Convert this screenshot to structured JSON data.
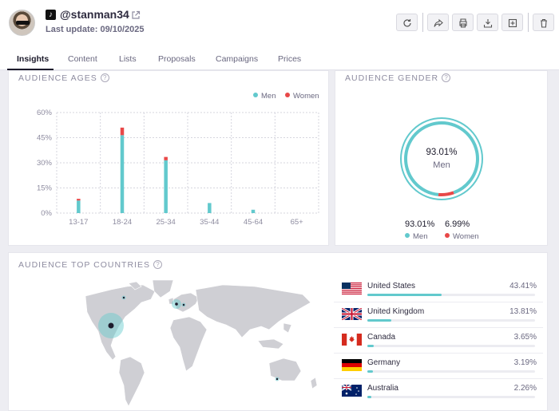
{
  "header": {
    "username": "@stanman34",
    "last_update": "Last update: 09/10/2025",
    "platform_icon": "tiktok-icon"
  },
  "toolbar": [
    "refresh-icon",
    "share-icon",
    "print-icon",
    "download-icon",
    "add-icon",
    "trash-icon"
  ],
  "tabs": [
    {
      "label": "Insights",
      "active": true
    },
    {
      "label": "Content"
    },
    {
      "label": "Lists"
    },
    {
      "label": "Proposals"
    },
    {
      "label": "Campaigns"
    },
    {
      "label": "Prices"
    }
  ],
  "ages": {
    "title": "AUDIENCE AGES",
    "help": "?",
    "legend_men": "Men",
    "legend_women": "Women",
    "men_color": "#62c9cd",
    "women_color": "#e84848"
  },
  "gender": {
    "title": "AUDIENCE GENDER",
    "help": "?",
    "center_value": "93.01%",
    "center_label": "Men",
    "men_value": "93.01%",
    "men_label": "Men",
    "women_value": "6.99%",
    "women_label": "Women"
  },
  "countries": {
    "title": "AUDIENCE TOP COUNTRIES",
    "help": "?",
    "items": [
      {
        "name": "United States",
        "pct": "43.41%",
        "fraction": 0.4341,
        "flag": "us-flag-icon"
      },
      {
        "name": "United Kingdom",
        "pct": "13.81%",
        "fraction": 0.1381,
        "flag": "uk-flag-icon"
      },
      {
        "name": "Canada",
        "pct": "3.65%",
        "fraction": 0.0365,
        "flag": "canada-flag-icon"
      },
      {
        "name": "Germany",
        "pct": "3.19%",
        "fraction": 0.0319,
        "flag": "germany-flag-icon"
      },
      {
        "name": "Australia",
        "pct": "2.26%",
        "fraction": 0.0226,
        "flag": "australia-flag-icon"
      }
    ]
  },
  "chart_data": [
    {
      "type": "bar",
      "stacked": true,
      "categories": [
        "13-17",
        "18-24",
        "25-34",
        "35-44",
        "45-64",
        "65+"
      ],
      "series": [
        {
          "name": "Men",
          "values": [
            7.5,
            46.5,
            31.5,
            6,
            2,
            0
          ],
          "color": "#62c9cd"
        },
        {
          "name": "Women",
          "values": [
            1,
            4.5,
            2,
            0,
            0,
            0
          ],
          "color": "#e84848"
        }
      ],
      "yticks": [
        "0%",
        "15%",
        "30%",
        "45%",
        "60%"
      ],
      "ylim": [
        0,
        60
      ],
      "grid": true,
      "legend": "top-right"
    },
    {
      "type": "pie",
      "donut": true,
      "categories": [
        "Men",
        "Women"
      ],
      "values": [
        93.01,
        6.99
      ],
      "colors": [
        "#62c9cd",
        "#e84848"
      ]
    }
  ]
}
